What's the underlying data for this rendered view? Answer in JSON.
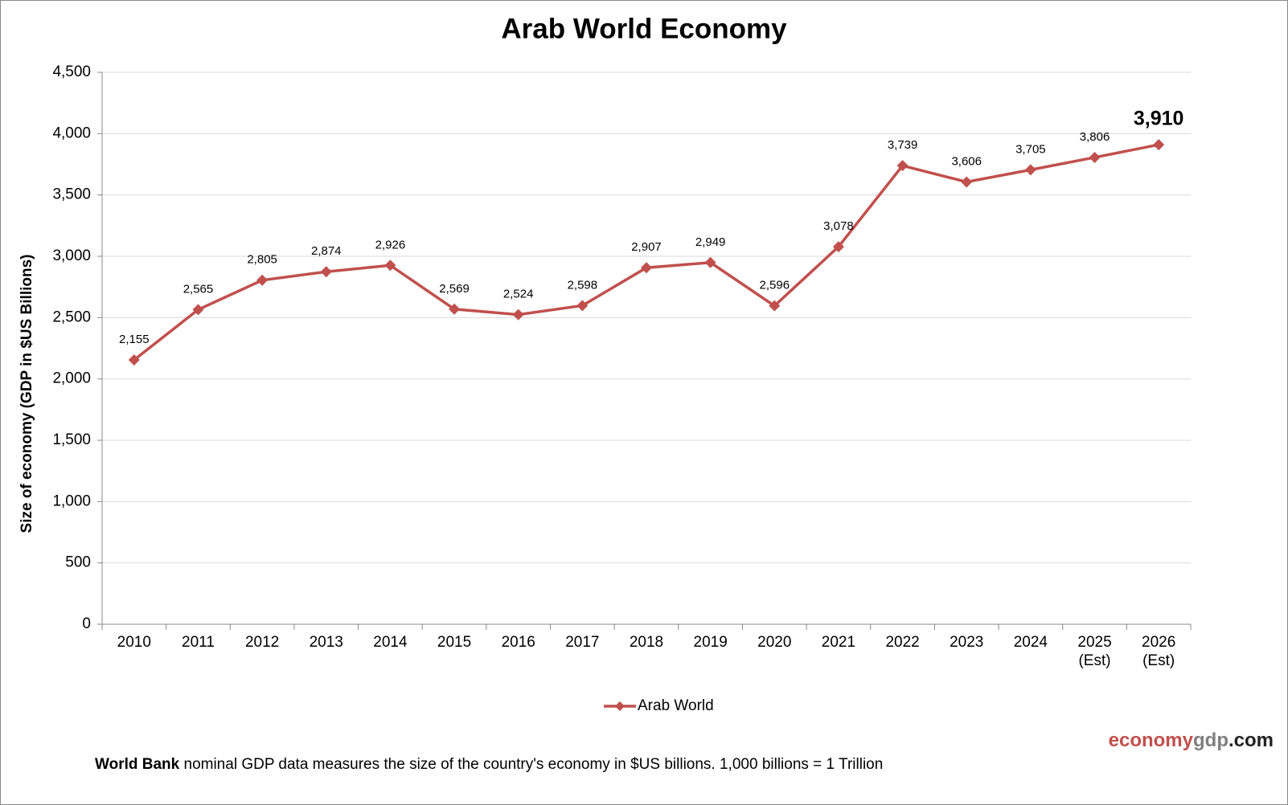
{
  "chart_data": {
    "type": "line",
    "title": "Arab World Economy",
    "y_label": "Size of economy (GDP in $US Billions)",
    "categories": [
      "2010",
      "2011",
      "2012",
      "2013",
      "2014",
      "2015",
      "2016",
      "2017",
      "2018",
      "2019",
      "2020",
      "2021",
      "2022",
      "2023",
      "2024",
      "2025 (Est)",
      "2026 (Est)"
    ],
    "series": [
      {
        "name": "Arab World",
        "color": "#c0504d",
        "values": [
          2155,
          2565,
          2805,
          2874,
          2926,
          2569,
          2524,
          2598,
          2907,
          2949,
          2596,
          3078,
          3739,
          3606,
          3705,
          3806,
          3910
        ],
        "value_labels": [
          "2,155",
          "2,565",
          "2,805",
          "2,874",
          "2,926",
          "2,569",
          "2,524",
          "2,598",
          "2,907",
          "2,949",
          "2,596",
          "3,078",
          "3,739",
          "3,606",
          "3,705",
          "3,806",
          "3,910"
        ]
      }
    ],
    "ylim": [
      0,
      4500
    ],
    "yticks": [
      0,
      500,
      {
        "value": 1000,
        "label": "1,000"
      },
      {
        "value": 1500,
        "label": "1,500"
      },
      {
        "value": 2000,
        "label": "2,000"
      },
      {
        "value": 2500,
        "label": "2,500"
      },
      {
        "value": 3000,
        "label": "3,000"
      },
      {
        "value": 3500,
        "label": "3,500"
      },
      {
        "value": 4000,
        "label": "4,000"
      },
      {
        "value": 4500,
        "label": "4,500"
      }
    ],
    "grid": true,
    "legend": "bottom",
    "watermark": [
      "economy",
      "gdp",
      ".com"
    ],
    "footnote": {
      "bold": "World Bank",
      "text": "nominal GDP data  measures the size of the country's economy in $US billions.  1,000 billions = 1 Trillion"
    }
  }
}
